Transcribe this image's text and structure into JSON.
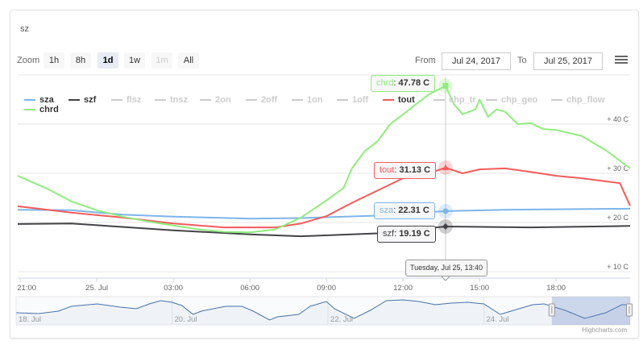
{
  "title": "sz",
  "range_selector": {
    "zoom_label": "Zoom",
    "buttons": [
      {
        "label": "1h",
        "state": "normal"
      },
      {
        "label": "8h",
        "state": "normal"
      },
      {
        "label": "1d",
        "state": "selected"
      },
      {
        "label": "1w",
        "state": "normal"
      },
      {
        "label": "1m",
        "state": "disabled"
      },
      {
        "label": "All",
        "state": "normal"
      }
    ],
    "from_label": "From",
    "from_value": "Jul 24, 2017",
    "to_label": "To",
    "to_value": "Jul 25, 2017"
  },
  "menu_icon": "hamburger-menu-icon",
  "credits": "Highcharts.com",
  "chart_data": {
    "type": "line",
    "title": "sz",
    "xlim": [
      "2017-07-24T20:54",
      "2017-07-25T20:54"
    ],
    "ylim": [
      8.7,
      49.5
    ],
    "x_ticks": [
      "21:00",
      "25. Jul",
      "03:00",
      "06:00",
      "09:00",
      "12:00",
      "15:00",
      "18:00"
    ],
    "y_ticks": [
      {
        "value": 10,
        "label": "+ 10 C"
      },
      {
        "value": 20,
        "label": "+ 20 C"
      },
      {
        "value": 30,
        "label": "+ 30 C"
      },
      {
        "value": 40,
        "label": "+ 40 C"
      }
    ],
    "grid": true,
    "legend_position": "top-left",
    "legend": [
      {
        "name": "sza",
        "color": "#7cb5ec",
        "visible": true
      },
      {
        "name": "szf",
        "color": "#434348",
        "visible": true
      },
      {
        "name": "flsz",
        "color": "#cccccc",
        "visible": false
      },
      {
        "name": "tnsz",
        "color": "#cccccc",
        "visible": false
      },
      {
        "name": "2on",
        "color": "#cccccc",
        "visible": false
      },
      {
        "name": "2off",
        "color": "#cccccc",
        "visible": false
      },
      {
        "name": "1on",
        "color": "#cccccc",
        "visible": false
      },
      {
        "name": "1off",
        "color": "#cccccc",
        "visible": false
      },
      {
        "name": "tout",
        "color": "#f45b5b",
        "visible": true
      },
      {
        "name": "chp_tr",
        "color": "#cccccc",
        "visible": false
      },
      {
        "name": "chp_geo",
        "color": "#cccccc",
        "visible": false
      },
      {
        "name": "chp_flow",
        "color": "#cccccc",
        "visible": false
      },
      {
        "name": "chrd",
        "color": "#90ed7d",
        "visible": true
      }
    ],
    "series": [
      {
        "name": "chrd",
        "color": "#90ed7d",
        "points": [
          [
            "2017-07-24T20:54",
            29.5
          ],
          [
            "2017-07-24T22:00",
            27
          ],
          [
            "2017-07-24T23:00",
            24.3
          ],
          [
            "2017-07-25T00:00",
            22.5
          ],
          [
            "2017-07-25T01:00",
            21.2
          ],
          [
            "2017-07-25T02:00",
            20.2
          ],
          [
            "2017-07-25T03:00",
            19.4
          ],
          [
            "2017-07-25T04:00",
            18.6
          ],
          [
            "2017-07-25T05:00",
            18.1
          ],
          [
            "2017-07-25T06:00",
            18
          ],
          [
            "2017-07-25T07:00",
            18.6
          ],
          [
            "2017-07-25T08:00",
            21
          ],
          [
            "2017-07-25T09:00",
            24.5
          ],
          [
            "2017-07-25T09:40",
            27
          ],
          [
            "2017-07-25T10:00",
            31
          ],
          [
            "2017-07-25T10:30",
            34.5
          ],
          [
            "2017-07-25T11:00",
            36.5
          ],
          [
            "2017-07-25T11:30",
            40
          ],
          [
            "2017-07-25T12:00",
            42
          ],
          [
            "2017-07-25T12:30",
            44
          ],
          [
            "2017-07-25T13:00",
            46
          ],
          [
            "2017-07-25T13:40",
            47.78
          ],
          [
            "2017-07-25T14:00",
            44
          ],
          [
            "2017-07-25T14:20",
            42
          ],
          [
            "2017-07-25T14:50",
            43
          ],
          [
            "2017-07-25T15:00",
            45
          ],
          [
            "2017-07-25T15:20",
            41.5
          ],
          [
            "2017-07-25T15:40",
            43
          ],
          [
            "2017-07-25T16:00",
            42.5
          ],
          [
            "2017-07-25T16:30",
            40
          ],
          [
            "2017-07-25T17:00",
            40.2
          ],
          [
            "2017-07-25T17:30",
            39
          ],
          [
            "2017-07-25T18:00",
            38.8
          ],
          [
            "2017-07-25T19:00",
            37.6
          ],
          [
            "2017-07-25T20:00",
            34.5
          ],
          [
            "2017-07-25T20:54",
            31
          ]
        ]
      },
      {
        "name": "tout",
        "color": "#f45b5b",
        "points": [
          [
            "2017-07-24T20:54",
            23.3
          ],
          [
            "2017-07-24T23:00",
            22
          ],
          [
            "2017-07-25T01:00",
            21
          ],
          [
            "2017-07-25T03:00",
            19.8
          ],
          [
            "2017-07-25T05:00",
            19
          ],
          [
            "2017-07-25T07:00",
            19
          ],
          [
            "2017-07-25T08:00",
            19.8
          ],
          [
            "2017-07-25T09:00",
            21.3
          ],
          [
            "2017-07-25T10:00",
            24
          ],
          [
            "2017-07-25T11:00",
            26.5
          ],
          [
            "2017-07-25T12:00",
            29
          ],
          [
            "2017-07-25T13:00",
            30
          ],
          [
            "2017-07-25T13:40",
            31.13
          ],
          [
            "2017-07-25T14:20",
            30
          ],
          [
            "2017-07-25T15:00",
            30.8
          ],
          [
            "2017-07-25T16:00",
            31
          ],
          [
            "2017-07-25T17:00",
            30.3
          ],
          [
            "2017-07-25T18:00",
            29.5
          ],
          [
            "2017-07-25T19:00",
            29
          ],
          [
            "2017-07-25T20:30",
            28
          ],
          [
            "2017-07-25T20:54",
            23.4
          ]
        ]
      },
      {
        "name": "sza",
        "color": "#7cb5ec",
        "points": [
          [
            "2017-07-24T20:54",
            22.6
          ],
          [
            "2017-07-24T23:00",
            22.5
          ],
          [
            "2017-07-25T01:00",
            21.6
          ],
          [
            "2017-07-25T03:00",
            21.2
          ],
          [
            "2017-07-25T06:00",
            20.8
          ],
          [
            "2017-07-25T08:00",
            20.9
          ],
          [
            "2017-07-25T11:00",
            21.4
          ],
          [
            "2017-07-25T13:40",
            22.31
          ],
          [
            "2017-07-25T16:00",
            22.6
          ],
          [
            "2017-07-25T20:54",
            22.8
          ]
        ]
      },
      {
        "name": "szf",
        "color": "#434348",
        "points": [
          [
            "2017-07-24T20:54",
            19.7
          ],
          [
            "2017-07-24T23:00",
            19.8
          ],
          [
            "2017-07-25T01:00",
            19.1
          ],
          [
            "2017-07-25T03:00",
            18.4
          ],
          [
            "2017-07-25T06:00",
            17.6
          ],
          [
            "2017-07-25T08:00",
            17.2
          ],
          [
            "2017-07-25T11:00",
            17.8
          ],
          [
            "2017-07-25T13:40",
            19.19
          ],
          [
            "2017-07-25T17:00",
            19
          ],
          [
            "2017-07-25T20:54",
            19.3
          ]
        ]
      }
    ],
    "tooltip": {
      "time": "Tuesday, Jul 25, 13:40",
      "items": [
        {
          "name": "chrd",
          "value": "47.78 C",
          "color": "#90ed7d"
        },
        {
          "name": "tout",
          "value": "31.13 C",
          "color": "#f45b5b"
        },
        {
          "name": "sza",
          "value": "22.31 C",
          "color": "#7cb5ec"
        },
        {
          "name": "szf",
          "value": "19.19 C",
          "color": "#434348"
        }
      ]
    },
    "navigator": {
      "x_ticks": [
        "18. Jul",
        "20. Jul",
        "22. Jul",
        "24. Jul"
      ],
      "xlim": [
        "2017-07-18T00:00",
        "2017-07-25T21:00"
      ],
      "ylim": [
        16,
        30
      ],
      "selected_range": [
        "2017-07-24T20:54",
        "2017-07-25T20:54"
      ],
      "points": [
        [
          "2017-07-18T00:00",
          22
        ],
        [
          "2017-07-18T07:00",
          21.6
        ],
        [
          "2017-07-18T13:00",
          22.8
        ],
        [
          "2017-07-18T17:00",
          25.2
        ],
        [
          "2017-07-19T01:00",
          26.4
        ],
        [
          "2017-07-19T08:00",
          24.8
        ],
        [
          "2017-07-19T13:00",
          24
        ],
        [
          "2017-07-19T17:00",
          26.4
        ],
        [
          "2017-07-19T20:30",
          28
        ],
        [
          "2017-07-20T00:00",
          27.2
        ],
        [
          "2017-07-20T03:00",
          25.6
        ],
        [
          "2017-07-20T06:30",
          21.2
        ],
        [
          "2017-07-20T09:00",
          22.8
        ],
        [
          "2017-07-20T16:30",
          25.2
        ],
        [
          "2017-07-20T21:30",
          25.2
        ],
        [
          "2017-07-21T01:00",
          22.8
        ],
        [
          "2017-07-21T06:00",
          18.4
        ],
        [
          "2017-07-21T08:30",
          20
        ],
        [
          "2017-07-21T15:00",
          21.2
        ],
        [
          "2017-07-21T18:30",
          25.2
        ],
        [
          "2017-07-21T23:30",
          27.6
        ],
        [
          "2017-07-22T02:00",
          24
        ],
        [
          "2017-07-22T08:00",
          19.2
        ],
        [
          "2017-07-22T13:00",
          23.2
        ],
        [
          "2017-07-22T18:00",
          28
        ],
        [
          "2017-07-22T23:00",
          28.4
        ],
        [
          "2017-07-23T04:00",
          27.6
        ],
        [
          "2017-07-23T09:00",
          26
        ],
        [
          "2017-07-23T14:00",
          26.8
        ],
        [
          "2017-07-23T19:00",
          27.2
        ],
        [
          "2017-07-24T00:00",
          26.4
        ],
        [
          "2017-07-24T05:00",
          21.2
        ],
        [
          "2017-07-24T10:00",
          23.6
        ],
        [
          "2017-07-24T15:00",
          26
        ],
        [
          "2017-07-24T18:30",
          26.4
        ],
        [
          "2017-07-25T01:00",
          23.2
        ],
        [
          "2017-07-25T07:00",
          19.2
        ],
        [
          "2017-07-25T13:30",
          22
        ],
        [
          "2017-07-25T18:30",
          26
        ],
        [
          "2017-07-25T21:00",
          26
        ]
      ]
    }
  }
}
